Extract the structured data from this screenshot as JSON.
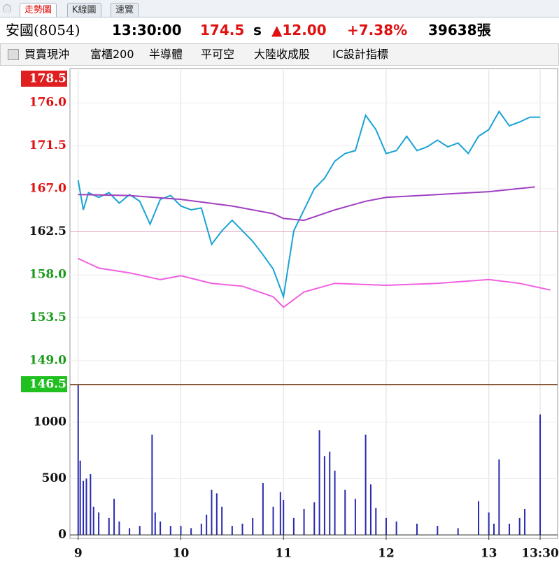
{
  "tabs": [
    "走勢圖",
    "K線圖",
    "速覽"
  ],
  "quote": {
    "name": "安國(8054)",
    "time": "13:30:00",
    "price": "174.5",
    "flag": "s",
    "change": "▲12.00",
    "percent": "+7.38%",
    "volume": "39638張"
  },
  "toolbar": [
    "買賣現沖",
    "富櫃200",
    "半導體",
    "平可空",
    "大陸收成股",
    "IC設計指標"
  ],
  "chart_data": [
    {
      "type": "line",
      "xlim": [
        8.92,
        13.67
      ],
      "ylim": [
        146.5,
        178.5
      ],
      "reference_line": 162.5,
      "grid": true,
      "yticks": [
        178.5,
        {
          "value": 176,
          "label": "176.0"
        },
        171.5,
        {
          "value": 167,
          "label": "167.0"
        },
        162.5,
        {
          "value": 158,
          "label": "158.0"
        },
        153.5,
        {
          "value": 149,
          "label": "149.0"
        },
        146.5
      ],
      "series": [
        {
          "color": "#1aa3d4",
          "x": [
            9.0,
            9.05,
            9.1,
            9.2,
            9.3,
            9.4,
            9.5,
            9.6,
            9.7,
            9.8,
            9.9,
            10.0,
            10.1,
            10.2,
            10.3,
            10.4,
            10.5,
            10.6,
            10.7,
            10.8,
            10.9,
            11.0,
            11.1,
            11.2,
            11.3,
            11.4,
            11.5,
            11.6,
            11.7,
            11.8,
            11.9,
            12.0,
            12.1,
            12.2,
            12.3,
            12.4,
            12.5,
            12.6,
            12.7,
            12.8,
            12.9,
            13.0,
            13.1,
            13.2,
            13.3,
            13.4,
            13.5
          ],
          "values": [
            167.9,
            164.8,
            166.6,
            166.1,
            166.6,
            165.5,
            166.4,
            165.7,
            163.3,
            165.9,
            166.3,
            165.2,
            164.8,
            165.0,
            161.2,
            162.6,
            163.7,
            162.6,
            161.5,
            160.1,
            158.6,
            155.7,
            162.6,
            164.8,
            167.0,
            168.1,
            169.9,
            170.7,
            171.0,
            174.7,
            173.2,
            170.7,
            171.0,
            172.5,
            171.0,
            171.4,
            172.1,
            171.4,
            171.8,
            170.7,
            172.5,
            173.2,
            175.1,
            173.6,
            174.0,
            174.5,
            174.5
          ]
        },
        {
          "color": "#a040c0",
          "x": [
            9.0,
            9.5,
            10.0,
            10.5,
            10.9,
            11.0,
            11.2,
            11.5,
            11.8,
            12.0,
            12.5,
            13.0,
            13.45
          ],
          "values": [
            166.4,
            166.3,
            165.9,
            165.2,
            164.4,
            163.9,
            163.7,
            164.8,
            165.7,
            166.1,
            166.4,
            166.7,
            167.2
          ]
        },
        {
          "color": "#f060e0",
          "x": [
            9.0,
            9.2,
            9.5,
            9.8,
            10.0,
            10.3,
            10.6,
            10.9,
            11.0,
            11.2,
            11.5,
            12.0,
            12.5,
            13.0,
            13.3,
            13.6
          ],
          "values": [
            159.7,
            158.7,
            158.2,
            157.5,
            157.9,
            157.1,
            156.8,
            155.7,
            154.6,
            156.2,
            157.1,
            156.9,
            157.1,
            157.5,
            157.1,
            156.4
          ]
        }
      ]
    },
    {
      "type": "bar",
      "xlim": [
        8.92,
        13.67
      ],
      "ylim": [
        0,
        1335
      ],
      "color": "#2a2ab0",
      "grid": true,
      "yticks": [
        0,
        500,
        1000
      ],
      "xticks": [
        9,
        10,
        11,
        12,
        13,
        {
          "value": 13.5,
          "label": "13:30"
        }
      ],
      "x": [
        9.0,
        9.02,
        9.05,
        9.08,
        9.12,
        9.15,
        9.2,
        9.3,
        9.35,
        9.4,
        9.5,
        9.6,
        9.72,
        9.75,
        9.8,
        9.9,
        10.0,
        10.1,
        10.2,
        10.25,
        10.3,
        10.35,
        10.4,
        10.5,
        10.6,
        10.7,
        10.8,
        10.9,
        10.97,
        11.0,
        11.1,
        11.2,
        11.3,
        11.35,
        11.4,
        11.45,
        11.5,
        11.6,
        11.7,
        11.8,
        11.85,
        11.9,
        12.0,
        12.1,
        12.3,
        12.5,
        12.7,
        12.9,
        13.0,
        13.05,
        13.1,
        13.2,
        13.3,
        13.35,
        13.5
      ],
      "values": [
        1330,
        660,
        480,
        500,
        540,
        250,
        200,
        150,
        320,
        120,
        60,
        80,
        890,
        200,
        120,
        80,
        80,
        60,
        100,
        180,
        400,
        370,
        250,
        80,
        100,
        150,
        460,
        250,
        380,
        310,
        150,
        230,
        290,
        930,
        700,
        740,
        570,
        400,
        320,
        890,
        450,
        240,
        150,
        120,
        100,
        80,
        60,
        300,
        200,
        100,
        670,
        100,
        150,
        230,
        1070
      ]
    }
  ]
}
